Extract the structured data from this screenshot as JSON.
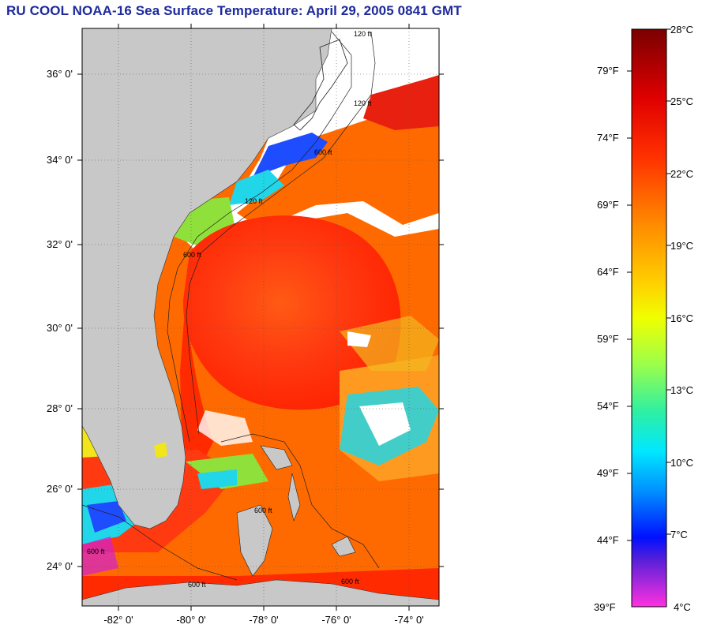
{
  "title": "RU COOL  NOAA-16  Sea Surface Temperature:  April 29, 2005 0841 GMT",
  "map": {
    "lat_labels": [
      "36° 0'",
      "34° 0'",
      "32° 0'",
      "30° 0'",
      "28° 0'",
      "26° 0'",
      "24° 0'"
    ],
    "lon_labels": [
      "-82° 0'",
      "-80° 0'",
      "-78° 0'",
      "-76° 0'",
      "-74° 0'"
    ],
    "contour_labels": [
      "120 ft",
      "120 ft",
      "600 ft",
      "120 ft",
      "600 ft",
      "600 ft",
      "600 ft",
      "600 ft",
      "600 ft"
    ],
    "colors": {
      "land": "#c8c8c8",
      "cloud": "#ffffff",
      "warm": "#ff2a00",
      "orange": "#ff6a00",
      "yellow": "#f2e51a",
      "green": "#8fe03a",
      "cyan": "#21d6e8",
      "blue": "#1e4cff",
      "magenta": "#d21fd6"
    }
  },
  "colorbar": {
    "fahrenheit": [
      "79°F",
      "74°F",
      "69°F",
      "64°F",
      "59°F",
      "54°F",
      "49°F",
      "44°F",
      "39°F"
    ],
    "celsius": [
      "28°C",
      "25°C",
      "22°C",
      "19°C",
      "16°C",
      "13°C",
      "10°C",
      "7°C",
      "4°C"
    ]
  }
}
